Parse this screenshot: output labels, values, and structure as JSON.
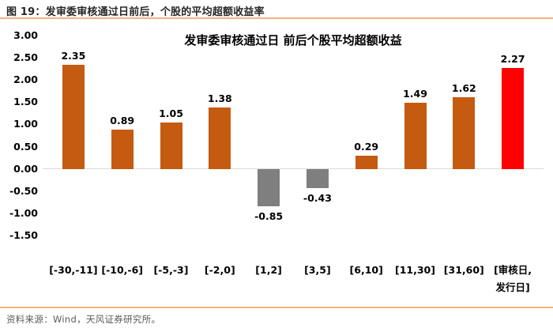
{
  "figure_header": "图 19：发审委审核通过日前后，个股的平均超额收益率",
  "source_note": "资料来源：Wind，天风证券研究所。",
  "chart_data": {
    "type": "bar",
    "title": "发审委审核通过日 前后个股平均超额收益",
    "categories": [
      "[-30,-11]",
      "[-10,-6]",
      "[-5,-3]",
      "[-2,0]",
      "[1,2]",
      "[3,5]",
      "[6,10]",
      "[11,30]",
      "[31,60]",
      "[审核日,\n发行日]"
    ],
    "values": [
      2.35,
      0.89,
      1.05,
      1.38,
      -0.85,
      -0.43,
      0.29,
      1.49,
      1.62,
      2.27
    ],
    "bar_colors": [
      "#C55A11",
      "#C55A11",
      "#C55A11",
      "#C55A11",
      "#7F7F7F",
      "#7F7F7F",
      "#C55A11",
      "#C55A11",
      "#C55A11",
      "#FF0000"
    ],
    "yticks": [
      "3.00",
      "2.50",
      "2.00",
      "1.50",
      "1.00",
      "0.50",
      "0.00",
      "-0.50",
      "-1.00",
      "-1.50"
    ],
    "ylim": [
      -1.5,
      3.0
    ],
    "xlabel": "",
    "ylabel": "",
    "legend": "none",
    "grid": "zero-line-only",
    "value_labels": "two decimals, above positive bars, below negative bars"
  },
  "colors": {
    "bar_positive": "#C55A11",
    "bar_negative": "#7F7F7F",
    "bar_highlight": "#FF0000",
    "divider": "#F5B183",
    "zero_line": "#D9D9D9",
    "header_text": "#262626",
    "footer_text": "#595959"
  }
}
